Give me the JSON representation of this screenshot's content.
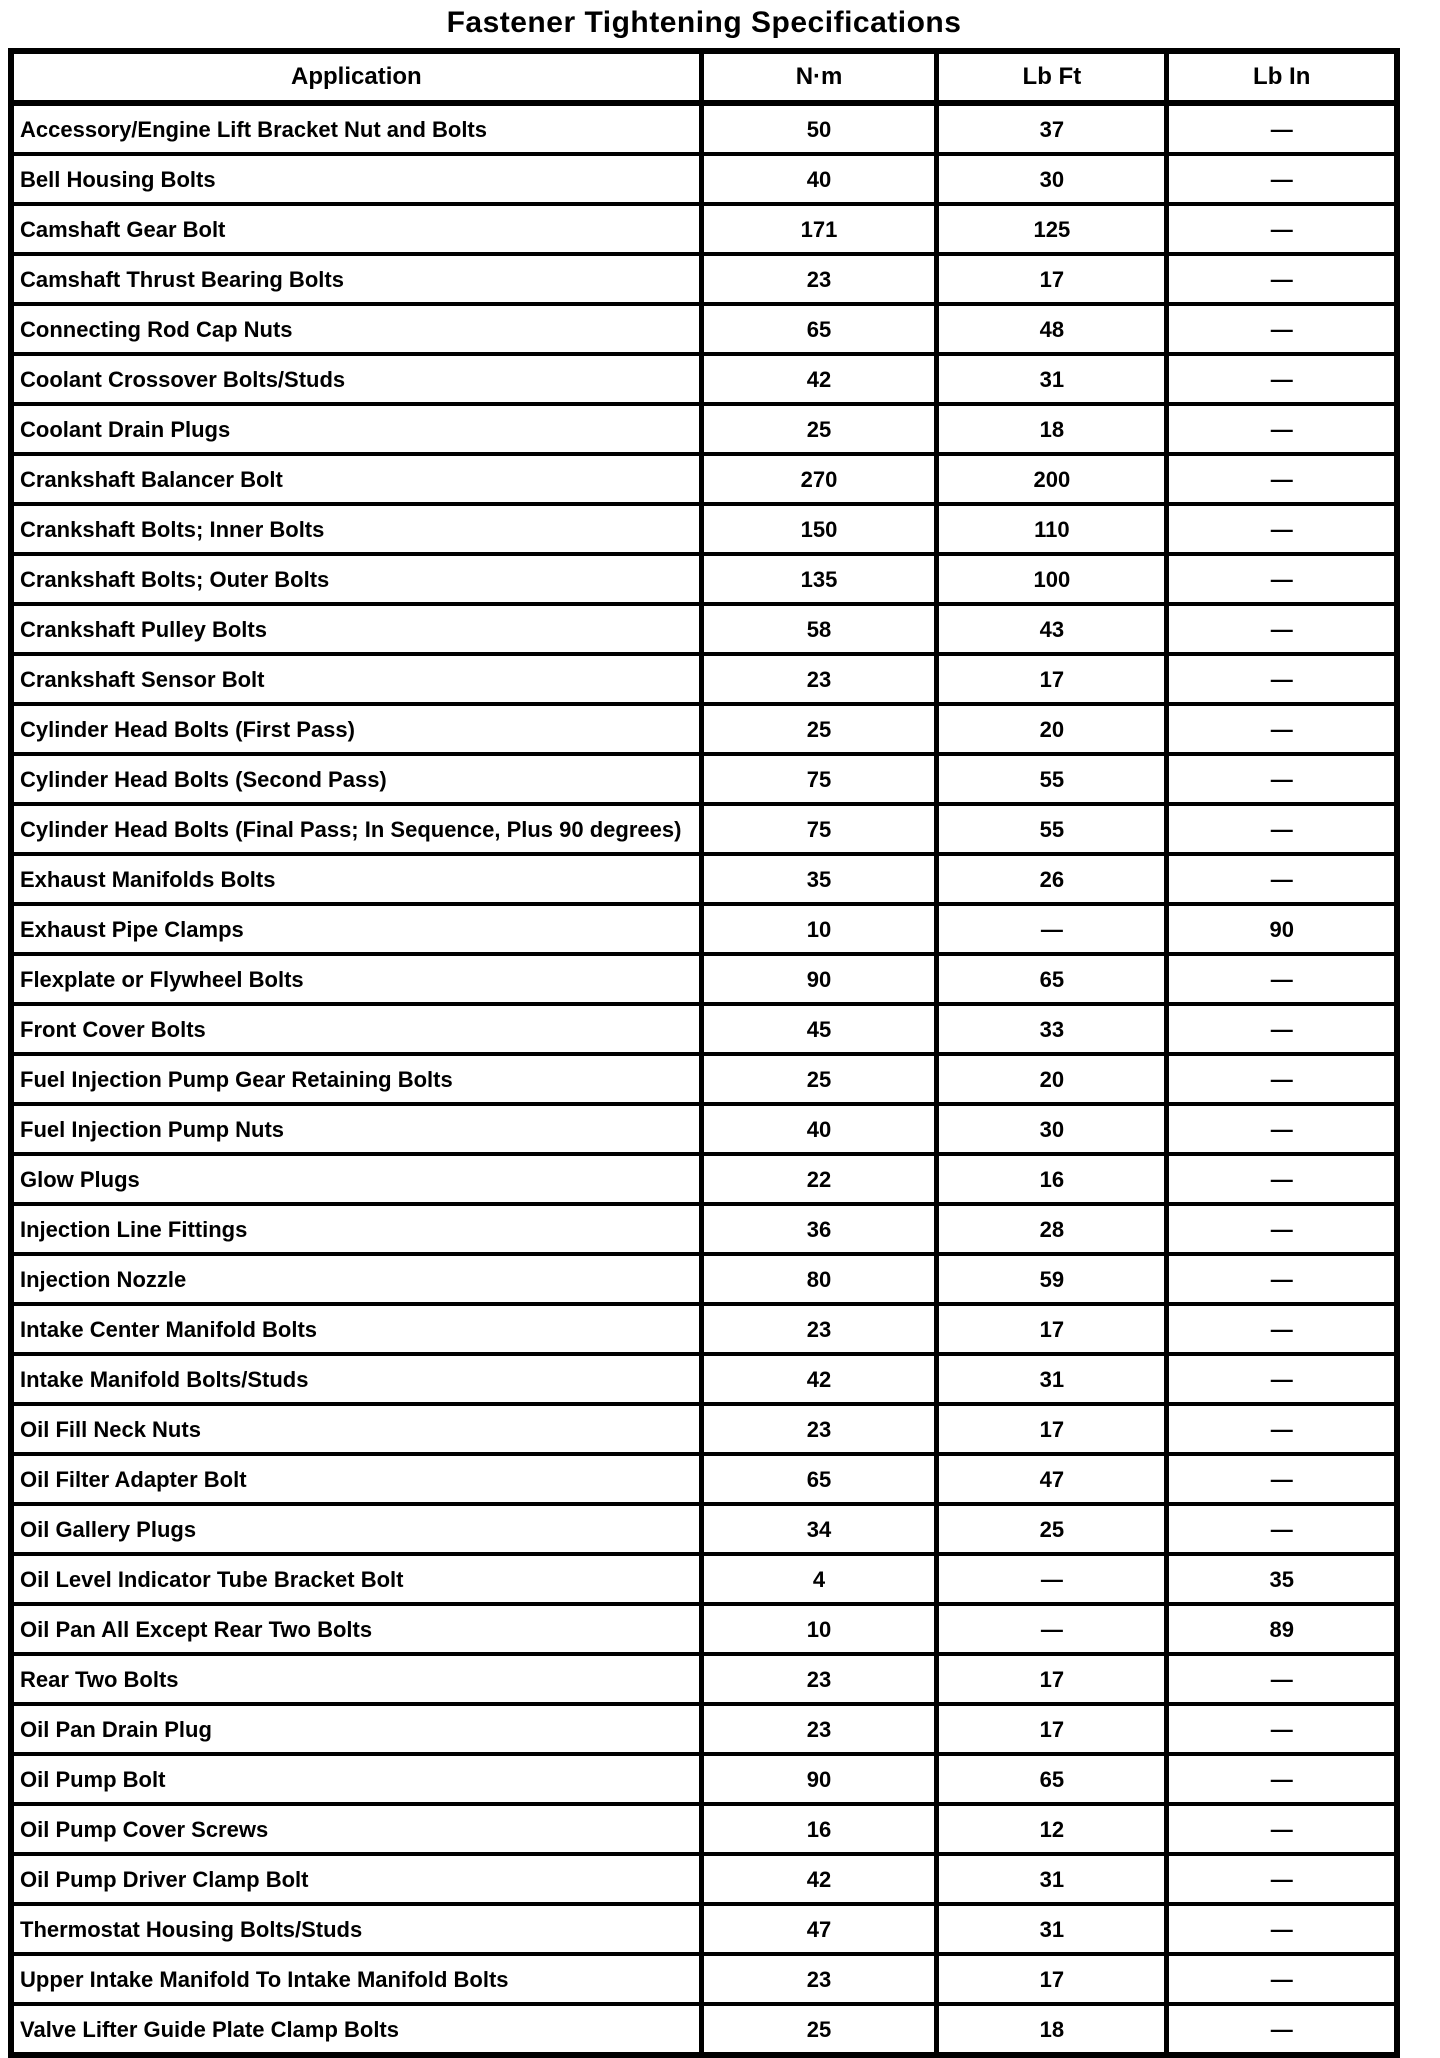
{
  "title": "Fastener Tightening Specifications",
  "colors": {
    "text": "#000000",
    "background": "#ffffff"
  },
  "table": {
    "columns": [
      "Application",
      "N·m",
      "Lb Ft",
      "Lb In"
    ],
    "rows": [
      {
        "application": "Accessory/Engine Lift Bracket Nut and Bolts",
        "nm": "50",
        "lb_ft": "37",
        "lb_in": "—"
      },
      {
        "application": "Bell Housing Bolts",
        "nm": "40",
        "lb_ft": "30",
        "lb_in": "—"
      },
      {
        "application": "Camshaft Gear Bolt",
        "nm": "171",
        "lb_ft": "125",
        "lb_in": "—"
      },
      {
        "application": "Camshaft Thrust Bearing Bolts",
        "nm": "23",
        "lb_ft": "17",
        "lb_in": "—"
      },
      {
        "application": "Connecting Rod Cap Nuts",
        "nm": "65",
        "lb_ft": "48",
        "lb_in": "—"
      },
      {
        "application": "Coolant Crossover Bolts/Studs",
        "nm": "42",
        "lb_ft": "31",
        "lb_in": "—"
      },
      {
        "application": "Coolant Drain Plugs",
        "nm": "25",
        "lb_ft": "18",
        "lb_in": "—"
      },
      {
        "application": "Crankshaft Balancer Bolt",
        "nm": "270",
        "lb_ft": "200",
        "lb_in": "—"
      },
      {
        "application": "Crankshaft Bolts; Inner Bolts",
        "nm": "150",
        "lb_ft": "110",
        "lb_in": "—"
      },
      {
        "application": "Crankshaft Bolts; Outer Bolts",
        "nm": "135",
        "lb_ft": "100",
        "lb_in": "—"
      },
      {
        "application": "Crankshaft Pulley Bolts",
        "nm": "58",
        "lb_ft": "43",
        "lb_in": "—"
      },
      {
        "application": "Crankshaft Sensor Bolt",
        "nm": "23",
        "lb_ft": "17",
        "lb_in": "—"
      },
      {
        "application": "Cylinder Head Bolts (First Pass)",
        "nm": "25",
        "lb_ft": "20",
        "lb_in": "—"
      },
      {
        "application": "Cylinder Head Bolts (Second Pass)",
        "nm": "75",
        "lb_ft": "55",
        "lb_in": "—"
      },
      {
        "application": "Cylinder Head Bolts (Final Pass; In Sequence, Plus 90 degrees)",
        "nm": "75",
        "lb_ft": "55",
        "lb_in": "—"
      },
      {
        "application": "Exhaust Manifolds Bolts",
        "nm": "35",
        "lb_ft": "26",
        "lb_in": "—"
      },
      {
        "application": "Exhaust Pipe Clamps",
        "nm": "10",
        "lb_ft": "—",
        "lb_in": "90"
      },
      {
        "application": "Flexplate or Flywheel Bolts",
        "nm": "90",
        "lb_ft": "65",
        "lb_in": "—"
      },
      {
        "application": "Front Cover Bolts",
        "nm": "45",
        "lb_ft": "33",
        "lb_in": "—"
      },
      {
        "application": "Fuel Injection Pump Gear Retaining Bolts",
        "nm": "25",
        "lb_ft": "20",
        "lb_in": "—"
      },
      {
        "application": "Fuel Injection Pump Nuts",
        "nm": "40",
        "lb_ft": "30",
        "lb_in": "—"
      },
      {
        "application": "Glow Plugs",
        "nm": "22",
        "lb_ft": "16",
        "lb_in": "—"
      },
      {
        "application": "Injection Line Fittings",
        "nm": "36",
        "lb_ft": "28",
        "lb_in": "—"
      },
      {
        "application": "Injection Nozzle",
        "nm": "80",
        "lb_ft": "59",
        "lb_in": "—"
      },
      {
        "application": "Intake Center Manifold Bolts",
        "nm": "23",
        "lb_ft": "17",
        "lb_in": "—"
      },
      {
        "application": "Intake Manifold Bolts/Studs",
        "nm": "42",
        "lb_ft": "31",
        "lb_in": "—"
      },
      {
        "application": "Oil Fill Neck Nuts",
        "nm": "23",
        "lb_ft": "17",
        "lb_in": "—"
      },
      {
        "application": "Oil Filter Adapter Bolt",
        "nm": "65",
        "lb_ft": "47",
        "lb_in": "—"
      },
      {
        "application": "Oil Gallery Plugs",
        "nm": "34",
        "lb_ft": "25",
        "lb_in": "—"
      },
      {
        "application": "Oil Level Indicator Tube Bracket Bolt",
        "nm": "4",
        "lb_ft": "—",
        "lb_in": "35"
      },
      {
        "application": "Oil Pan All Except Rear Two Bolts",
        "nm": "10",
        "lb_ft": "—",
        "lb_in": "89"
      },
      {
        "application": "Rear Two Bolts",
        "nm": "23",
        "lb_ft": "17",
        "lb_in": "—"
      },
      {
        "application": "Oil Pan Drain Plug",
        "nm": "23",
        "lb_ft": "17",
        "lb_in": "—"
      },
      {
        "application": "Oil Pump Bolt",
        "nm": "90",
        "lb_ft": "65",
        "lb_in": "—"
      },
      {
        "application": "Oil Pump Cover Screws",
        "nm": "16",
        "lb_ft": "12",
        "lb_in": "—"
      },
      {
        "application": "Oil Pump Driver Clamp Bolt",
        "nm": "42",
        "lb_ft": "31",
        "lb_in": "—"
      },
      {
        "application": "Thermostat Housing Bolts/Studs",
        "nm": "47",
        "lb_ft": "31",
        "lb_in": "—"
      },
      {
        "application": "Upper Intake Manifold To Intake Manifold Bolts",
        "nm": "23",
        "lb_ft": "17",
        "lb_in": "—"
      },
      {
        "application": "Valve Lifter Guide Plate Clamp Bolts",
        "nm": "25",
        "lb_ft": "18",
        "lb_in": "—"
      }
    ]
  }
}
